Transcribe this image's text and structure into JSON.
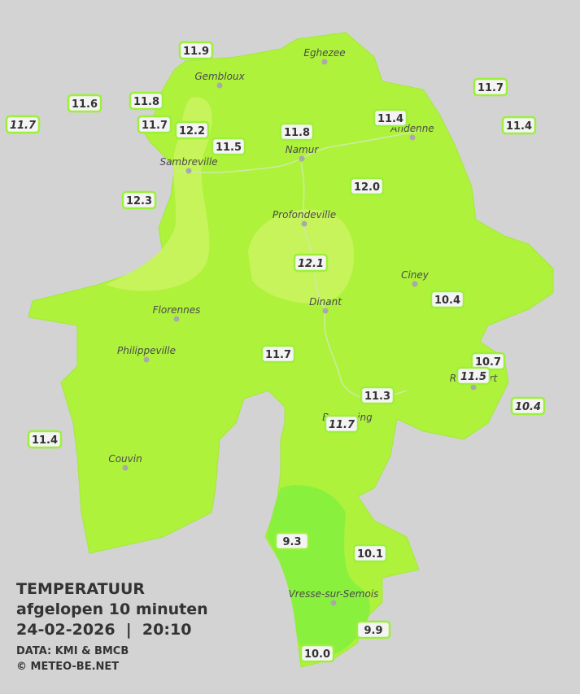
{
  "legend": {
    "title": "TEMPERATUUR",
    "subtitle": "afgelopen 10 minuten",
    "datetime": "24-02-2026  |  20:10",
    "source": "DATA: KMI & BMCB",
    "copyright": "© METEO-BE.NET"
  },
  "cities": [
    {
      "name": "Eghezee"
    },
    {
      "name": "Gembloux"
    },
    {
      "name": "Andenne"
    },
    {
      "name": "Sambreville"
    },
    {
      "name": "Namur"
    },
    {
      "name": "Profondeville"
    },
    {
      "name": "Ciney"
    },
    {
      "name": "Dinant"
    },
    {
      "name": "Florennes"
    },
    {
      "name": "Philippeville"
    },
    {
      "name": "Couvin"
    },
    {
      "name": "Vresse-sur-Semois"
    },
    {
      "name": "Rochefort"
    },
    {
      "name": "Beauraing"
    }
  ],
  "stations": [
    {
      "label": "11.9",
      "italic": false
    },
    {
      "label": "11.6",
      "italic": false
    },
    {
      "label": "11.8",
      "italic": false
    },
    {
      "label": "11.7",
      "italic": true
    },
    {
      "label": "11.7",
      "italic": false
    },
    {
      "label": "12.2",
      "italic": false
    },
    {
      "label": "11.5",
      "italic": false
    },
    {
      "label": "11.8",
      "italic": false
    },
    {
      "label": "11.4",
      "italic": false
    },
    {
      "label": "11.7",
      "italic": false
    },
    {
      "label": "11.4",
      "italic": false
    },
    {
      "label": "12.0",
      "italic": false
    },
    {
      "label": "12.3",
      "italic": false
    },
    {
      "label": "12.1",
      "italic": true
    },
    {
      "label": "10.4",
      "italic": false
    },
    {
      "label": "11.7",
      "italic": false
    },
    {
      "label": "10.7",
      "italic": false
    },
    {
      "label": "11.5",
      "italic": true
    },
    {
      "label": "10.4",
      "italic": true
    },
    {
      "label": "11.3",
      "italic": false
    },
    {
      "label": "11.7",
      "italic": true
    },
    {
      "label": "11.4",
      "italic": false
    },
    {
      "label": "9.3",
      "italic": false
    },
    {
      "label": "10.1",
      "italic": false
    },
    {
      "label": "9.9",
      "italic": false
    },
    {
      "label": "10.0",
      "italic": false
    }
  ]
}
